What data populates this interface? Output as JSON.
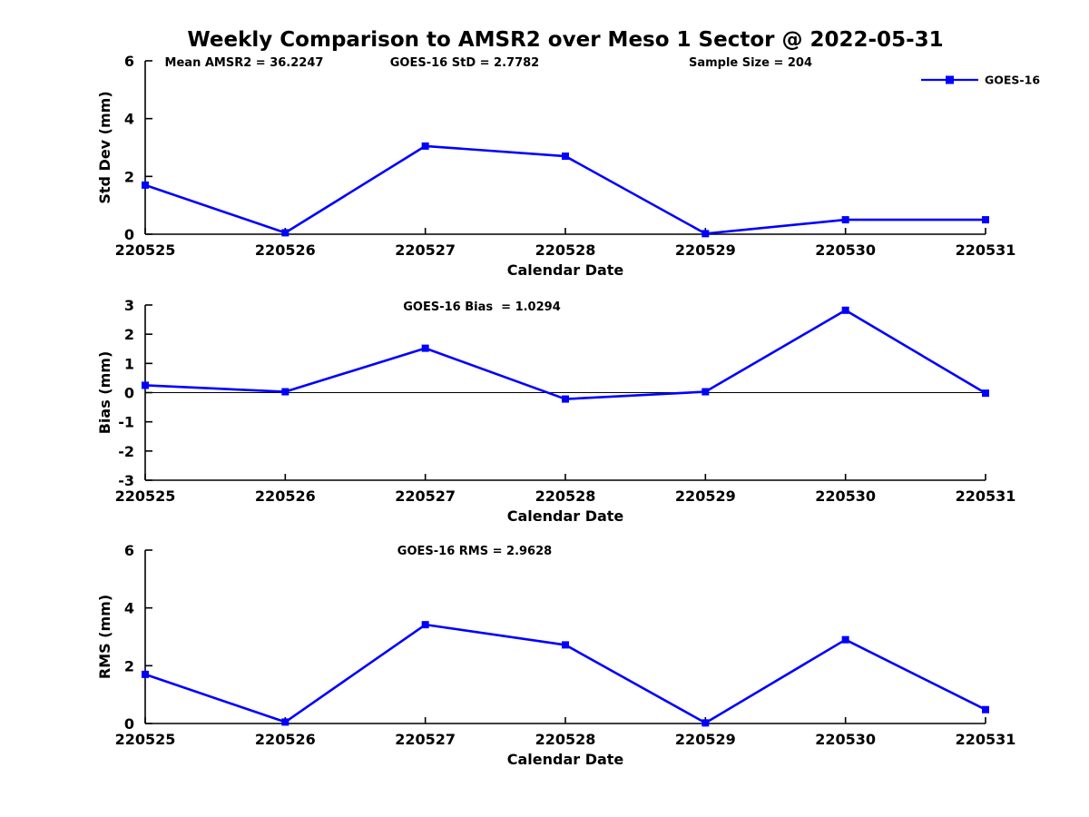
{
  "figure": {
    "title": "Weekly Comparison to AMSR2 over Meso 1 Sector @ 2022-05-31",
    "background_color": "#ffffff",
    "text_color": "#000000",
    "series_color": "#0000ff"
  },
  "chart_data": [
    {
      "type": "line",
      "name": "std-dev",
      "xlabel": "Calendar Date",
      "ylabel": "Std Dev (mm)",
      "categories": [
        "220525",
        "220526",
        "220527",
        "220528",
        "220529",
        "220530",
        "220531"
      ],
      "series": [
        {
          "name": "GOES-16",
          "color": "#0000ff",
          "marker": "square",
          "values": [
            1.7,
            0.05,
            3.05,
            2.7,
            0.02,
            0.5,
            0.5
          ]
        }
      ],
      "ylim": [
        0,
        6
      ],
      "yticks": [
        0,
        2,
        4,
        6
      ],
      "grid": false,
      "zero_line": false,
      "annotations": [
        {
          "text": "Mean AMSR2 = 36.2247"
        },
        {
          "text": "GOES-16 StD = 2.7782"
        },
        {
          "text": "Sample Size = 204"
        }
      ],
      "legend": {
        "visible": true,
        "position": "top-right",
        "entries": [
          "GOES-16"
        ]
      }
    },
    {
      "type": "line",
      "name": "bias",
      "xlabel": "Calendar Date",
      "ylabel": "Bias (mm)",
      "categories": [
        "220525",
        "220526",
        "220527",
        "220528",
        "220529",
        "220530",
        "220531"
      ],
      "series": [
        {
          "name": "GOES-16",
          "color": "#0000ff",
          "marker": "square",
          "values": [
            0.25,
            0.03,
            1.52,
            -0.22,
            0.03,
            2.82,
            -0.02
          ]
        }
      ],
      "ylim": [
        -3,
        3
      ],
      "yticks": [
        -3,
        -2,
        -1,
        0,
        1,
        2,
        3
      ],
      "grid": false,
      "zero_line": true,
      "annotations": [
        {
          "text": "GOES-16 Bias  = 1.0294"
        }
      ],
      "legend": {
        "visible": false
      }
    },
    {
      "type": "line",
      "name": "rms",
      "xlabel": "Calendar Date",
      "ylabel": "RMS (mm)",
      "categories": [
        "220525",
        "220526",
        "220527",
        "220528",
        "220529",
        "220530",
        "220531"
      ],
      "series": [
        {
          "name": "GOES-16",
          "color": "#0000ff",
          "marker": "square",
          "values": [
            1.7,
            0.05,
            3.42,
            2.72,
            0.02,
            2.9,
            0.48
          ]
        }
      ],
      "ylim": [
        0,
        6
      ],
      "yticks": [
        0,
        2,
        4,
        6
      ],
      "grid": false,
      "zero_line": false,
      "annotations": [
        {
          "text": "GOES-16 RMS = 2.9628"
        }
      ],
      "legend": {
        "visible": false
      }
    }
  ]
}
